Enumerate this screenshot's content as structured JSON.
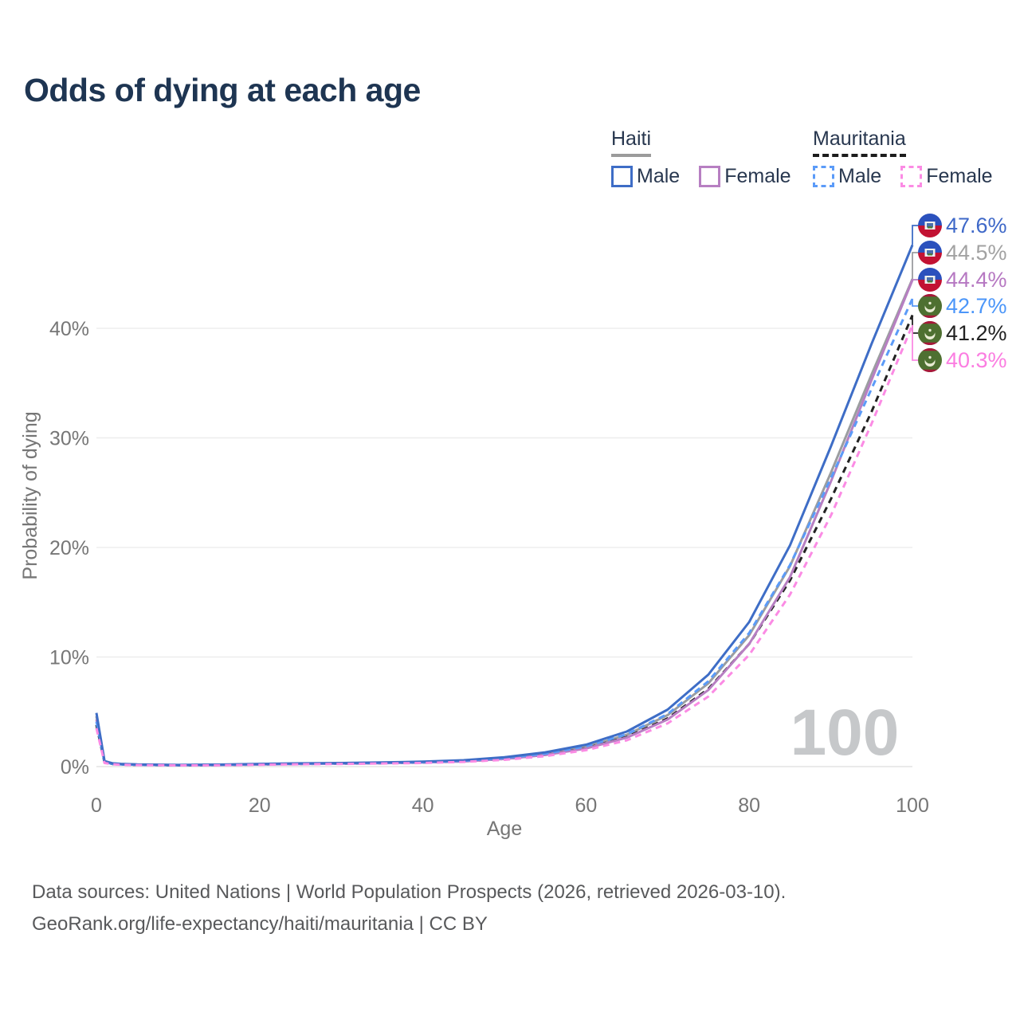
{
  "title": "Odds of dying at each age",
  "legend": {
    "groups": [
      {
        "name": "Haiti",
        "line_style": "solid",
        "line_color": "#9b9b9b",
        "items": [
          {
            "label": "Male",
            "color": "#3e6dc6",
            "dash": "solid"
          },
          {
            "label": "Female",
            "color": "#b77fc2",
            "dash": "solid"
          }
        ]
      },
      {
        "name": "Mauritania",
        "line_style": "dashed",
        "line_color": "#1c1c1c",
        "items": [
          {
            "label": "Male",
            "color": "#5b9bf8",
            "dash": "dashed"
          },
          {
            "label": "Female",
            "color": "#fb8be4",
            "dash": "dashed"
          }
        ]
      }
    ]
  },
  "watermark": "100",
  "chart_data": {
    "type": "line",
    "title": "Odds of dying at each age",
    "xlabel": "Age",
    "ylabel": "Probability of dying",
    "xlim": [
      0,
      100
    ],
    "ylim_pct": [
      0,
      48
    ],
    "grid": "horizontal",
    "x_ticks": [
      {
        "v": 0,
        "label": "0"
      },
      {
        "v": 20,
        "label": "20"
      },
      {
        "v": 40,
        "label": "40"
      },
      {
        "v": 60,
        "label": "60"
      },
      {
        "v": 80,
        "label": "80"
      },
      {
        "v": 100,
        "label": "100"
      }
    ],
    "y_ticks": [
      {
        "v": 0,
        "label": "0%"
      },
      {
        "v": 10,
        "label": "10%"
      },
      {
        "v": 20,
        "label": "20%"
      },
      {
        "v": 30,
        "label": "30%"
      },
      {
        "v": 40,
        "label": "40%"
      }
    ],
    "x": [
      0,
      1,
      2,
      3,
      5,
      10,
      15,
      20,
      25,
      30,
      35,
      40,
      45,
      50,
      55,
      60,
      65,
      70,
      75,
      80,
      85,
      90,
      95,
      100
    ],
    "series": [
      {
        "name": "Haiti Male",
        "flag": "haiti",
        "dash": "solid",
        "color": "#3e6dc6",
        "label_color": "#3e68c8",
        "end_label": "47.6%",
        "values": [
          4.9,
          0.5,
          0.3,
          0.25,
          0.2,
          0.15,
          0.18,
          0.25,
          0.3,
          0.33,
          0.38,
          0.45,
          0.58,
          0.85,
          1.3,
          2.0,
          3.2,
          5.2,
          8.4,
          13.2,
          20.2,
          29.2,
          38.6,
          47.6
        ]
      },
      {
        "name": "Haiti Both Sexes",
        "flag": "haiti",
        "dash": "solid",
        "color": "#9b9da0",
        "label_color": "#a2a2a2",
        "end_label": "44.5%",
        "values": [
          4.6,
          0.46,
          0.28,
          0.23,
          0.18,
          0.14,
          0.16,
          0.22,
          0.27,
          0.3,
          0.34,
          0.41,
          0.52,
          0.77,
          1.17,
          1.8,
          2.9,
          4.7,
          7.6,
          12.0,
          18.3,
          26.8,
          35.8,
          44.5
        ]
      },
      {
        "name": "Haiti Female",
        "flag": "haiti",
        "dash": "solid",
        "color": "#b77fc2",
        "label_color": "#b678c2",
        "end_label": "44.4%",
        "values": [
          4.3,
          0.42,
          0.26,
          0.21,
          0.17,
          0.13,
          0.14,
          0.19,
          0.23,
          0.27,
          0.31,
          0.37,
          0.47,
          0.7,
          1.06,
          1.65,
          2.65,
          4.3,
          7.0,
          11.2,
          17.3,
          26.0,
          35.3,
          44.4
        ]
      },
      {
        "name": "Mauritania Male",
        "flag": "mauritania",
        "dash": "dashed",
        "color": "#5b9bf8",
        "label_color": "#4b96f9",
        "end_label": "42.7%",
        "values": [
          4.1,
          0.4,
          0.25,
          0.2,
          0.17,
          0.13,
          0.16,
          0.22,
          0.27,
          0.3,
          0.34,
          0.41,
          0.53,
          0.78,
          1.18,
          1.85,
          2.95,
          4.8,
          7.8,
          12.2,
          18.4,
          26.3,
          34.5,
          42.7
        ]
      },
      {
        "name": "Mauritania Both Sexes",
        "flag": "mauritania",
        "dash": "dashed",
        "color": "#222222",
        "label_color": "#222222",
        "end_label": "41.2%",
        "values": [
          3.8,
          0.36,
          0.23,
          0.19,
          0.15,
          0.12,
          0.14,
          0.2,
          0.24,
          0.27,
          0.31,
          0.37,
          0.48,
          0.7,
          1.07,
          1.68,
          2.7,
          4.4,
          7.1,
          11.2,
          17.0,
          24.4,
          32.4,
          41.2
        ]
      },
      {
        "name": "Mauritania Female",
        "flag": "mauritania",
        "dash": "dashed",
        "color": "#fb8be4",
        "label_color": "#fb7de1",
        "end_label": "40.3%",
        "values": [
          3.5,
          0.33,
          0.21,
          0.17,
          0.14,
          0.11,
          0.12,
          0.17,
          0.21,
          0.24,
          0.28,
          0.33,
          0.43,
          0.62,
          0.95,
          1.5,
          2.4,
          3.95,
          6.4,
          10.2,
          15.7,
          22.9,
          31.3,
          40.3
        ]
      }
    ]
  },
  "footer": {
    "line1": "Data sources: United Nations | World Population Prospects (2026, retrieved 2026-03-10).",
    "line2": "GeoRank.org/life-expectancy/haiti/mauritania | CC BY"
  }
}
